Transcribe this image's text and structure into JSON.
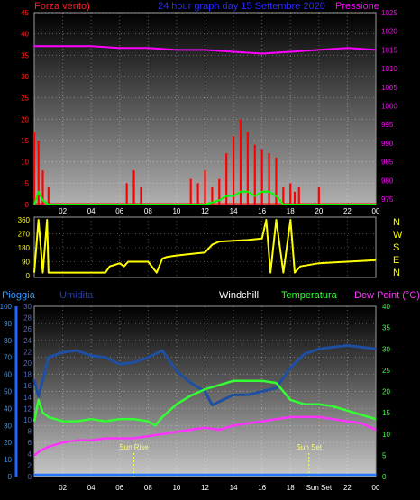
{
  "chart_data": [
    {
      "panel": "wind-pressure",
      "type": "bar",
      "title": "24 hour graph day  15 Settembre 2020",
      "y_left_label": "Forza vento)",
      "y_right_label": "Pressione",
      "y_left_ticks": [
        "0",
        "5",
        "10",
        "15",
        "20",
        "25",
        "30",
        "35",
        "40",
        "45"
      ],
      "y_right_ticks": [
        "975",
        "980",
        "985",
        "990",
        "995",
        "1000",
        "1005",
        "1010",
        "1015",
        "1020",
        "1025"
      ],
      "x_ticks": [
        "02",
        "04",
        "06",
        "08",
        "10",
        "12",
        "14",
        "16",
        "18",
        "20",
        "22",
        "00"
      ],
      "grid": true,
      "series": [
        {
          "name": "Pressione",
          "color": "#ff00ff",
          "x": [
            0,
            2,
            4,
            6,
            8,
            10,
            12,
            14,
            16,
            18,
            20,
            22,
            24
          ],
          "values": [
            1016,
            1016,
            1016,
            1015.5,
            1015.5,
            1015,
            1015,
            1014.5,
            1014,
            1014.5,
            1015,
            1015.5,
            1015
          ]
        },
        {
          "name": "wind gust",
          "color": "#ff0000",
          "x": [
            0,
            0.3,
            0.6,
            1,
            6.2,
            6.5,
            7,
            7.5,
            10,
            11,
            11.5,
            12,
            12.5,
            13,
            13.5,
            14,
            14.5,
            15,
            15.5,
            16,
            16.5,
            17,
            17.5,
            18,
            18.3,
            18.6,
            20,
            22,
            24
          ],
          "values": [
            17,
            15,
            8,
            4,
            0,
            5,
            8,
            4,
            0,
            6,
            5,
            8,
            4,
            6,
            12,
            16,
            20,
            17,
            14,
            13,
            12,
            11,
            4,
            5,
            3,
            4,
            4,
            0,
            0
          ]
        },
        {
          "name": "wind speed",
          "color": "#00ff00",
          "x": [
            0,
            0.3,
            0.6,
            1,
            2,
            12,
            13,
            13.5,
            14,
            14.5,
            15,
            15.5,
            16,
            16.5,
            17,
            17.5,
            18,
            20,
            24
          ],
          "values": [
            0,
            3,
            1,
            0,
            0,
            0,
            1,
            2,
            2,
            3,
            3,
            2,
            3,
            3,
            2,
            0,
            0,
            0,
            0
          ]
        }
      ]
    },
    {
      "panel": "wind-direction",
      "type": "line",
      "y_ticks": [
        "0",
        "90",
        "180",
        "270",
        "360"
      ],
      "compass": [
        "N",
        "W",
        "S",
        "E",
        "N"
      ],
      "series": [
        {
          "name": "direction",
          "color": "#ffff00",
          "x": [
            0,
            0.3,
            0.6,
            0.9,
            1,
            3,
            5,
            5.3,
            6,
            6.3,
            6.6,
            8,
            8.6,
            9,
            9.3,
            10,
            11,
            12,
            12.5,
            13,
            15,
            16,
            16.3,
            16.6,
            17,
            17.5,
            18,
            18.3,
            18.7,
            20,
            22,
            24
          ],
          "values": [
            20,
            360,
            20,
            360,
            20,
            20,
            20,
            60,
            80,
            60,
            90,
            90,
            20,
            110,
            120,
            130,
            140,
            150,
            200,
            220,
            230,
            240,
            360,
            20,
            360,
            20,
            360,
            20,
            60,
            80,
            90,
            100
          ]
        }
      ]
    },
    {
      "panel": "temperature-humidity",
      "type": "line",
      "legend": [
        "Pioggia",
        "Umidita",
        "Windchill",
        "Temperatura",
        "Dew Point (°C)"
      ],
      "y_left_ticks": [
        "0",
        "10",
        "20",
        "30",
        "40",
        "50",
        "60",
        "70",
        "80",
        "90",
        "100"
      ],
      "y_mid_ticks": [
        "0",
        "2",
        "4",
        "6",
        "8",
        "10",
        "12",
        "14",
        "16",
        "18",
        "20",
        "22",
        "24",
        "26",
        "28",
        "30"
      ],
      "y_right_ticks": [
        "0",
        "5",
        "10",
        "15",
        "20",
        "25",
        "30",
        "35",
        "40"
      ],
      "x_ticks": [
        "02",
        "04",
        "06",
        "08",
        "10",
        "12",
        "14",
        "16",
        "18",
        "Sun Set",
        "22",
        "00"
      ],
      "annotations": [
        "Sun Rise",
        "Sun Set"
      ],
      "series": [
        {
          "name": "Umidita",
          "color": "#1f4fa0",
          "x": [
            0,
            0.3,
            0.7,
            1,
            2,
            3,
            4,
            5,
            6,
            7,
            8,
            9,
            10,
            11,
            12,
            12.5,
            13,
            14,
            15,
            16,
            17,
            18,
            19,
            20,
            21,
            22,
            23,
            24
          ],
          "values": [
            57,
            47,
            60,
            70,
            73,
            74,
            71,
            70,
            66,
            67,
            70,
            74,
            62,
            55,
            50,
            42,
            44,
            48,
            48,
            50,
            52,
            64,
            72,
            75,
            76,
            77,
            76,
            75
          ]
        },
        {
          "name": "Temperatura",
          "color": "#33ff33",
          "x": [
            0,
            0.3,
            0.6,
            1,
            2,
            3,
            4,
            5,
            6,
            7,
            8,
            8.5,
            9,
            10,
            11,
            12,
            13,
            14,
            15,
            16,
            17,
            18,
            19,
            20,
            21,
            22,
            23,
            24
          ],
          "values": [
            13,
            18,
            15,
            14,
            13,
            13,
            13.5,
            13,
            13.5,
            13.5,
            13,
            12,
            14,
            17,
            19,
            20.5,
            21.5,
            22.5,
            22.5,
            22.5,
            22,
            18,
            17,
            17,
            16.5,
            15.5,
            14.5,
            13.5
          ]
        },
        {
          "name": "Dew Point (°C)",
          "color": "#ff33ff",
          "x": [
            0,
            0.4,
            1,
            2,
            3,
            4,
            5,
            6,
            7,
            8,
            9,
            10,
            11,
            12,
            13,
            14,
            15,
            16,
            17,
            18,
            19,
            20,
            21,
            22,
            23,
            24
          ],
          "values": [
            5,
            6,
            7,
            8,
            8.5,
            8.5,
            9,
            9,
            9,
            9.5,
            10,
            10.5,
            11,
            11.5,
            11,
            12,
            12.5,
            13,
            13.5,
            14,
            14,
            14,
            13.5,
            13,
            12.5,
            11
          ]
        },
        {
          "name": "Pioggia",
          "color": "#2277ff",
          "x": [
            0,
            24
          ],
          "values": [
            0,
            0
          ]
        }
      ],
      "sun_rise_hour": 7,
      "sun_set_hour": 19.3
    }
  ]
}
